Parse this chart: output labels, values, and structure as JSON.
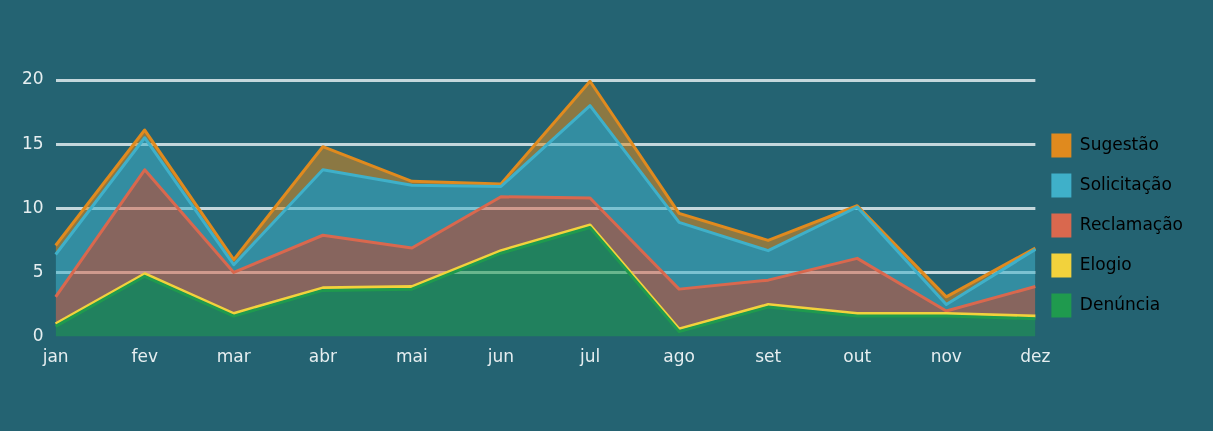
{
  "chart_data": {
    "type": "area",
    "stacked": true,
    "categories": [
      "jan",
      "fev",
      "mar",
      "abr",
      "mai",
      "jun",
      "jul",
      "ago",
      "set",
      "out",
      "nov",
      "dez"
    ],
    "series": [
      {
        "name": "Denúncia",
        "color": "#1f9a4e",
        "values": [
          0.8,
          4.7,
          1.6,
          3.6,
          3.7,
          6.5,
          8.5,
          0.4,
          2.3,
          1.6,
          1.6,
          1.4
        ]
      },
      {
        "name": "Elogio",
        "color": "#f2d23c",
        "values": [
          0.2,
          0.2,
          0.2,
          0.2,
          0.2,
          0.2,
          0.2,
          0.2,
          0.2,
          0.2,
          0.2,
          0.2
        ]
      },
      {
        "name": "Reclamação",
        "color": "#d9684e",
        "values": [
          2.1,
          8.1,
          3.2,
          4.1,
          3.0,
          4.2,
          2.1,
          3.1,
          1.9,
          4.3,
          0.2,
          2.3
        ]
      },
      {
        "name": "Solicitação",
        "color": "#3fb0c9",
        "values": [
          3.3,
          2.5,
          0.6,
          5.1,
          4.9,
          0.8,
          7.2,
          5.2,
          2.3,
          4.0,
          0.5,
          2.9
        ]
      },
      {
        "name": "Sugestão",
        "color": "#e08a1e",
        "values": [
          0.7,
          0.6,
          0.4,
          1.8,
          0.3,
          0.2,
          1.9,
          0.7,
          0.8,
          0.1,
          0.6,
          0.1
        ]
      }
    ],
    "ylim": [
      0,
      20
    ],
    "yticks": [
      0,
      5,
      10,
      15,
      20
    ],
    "grid": "y",
    "legend": "right",
    "marker": "none"
  }
}
